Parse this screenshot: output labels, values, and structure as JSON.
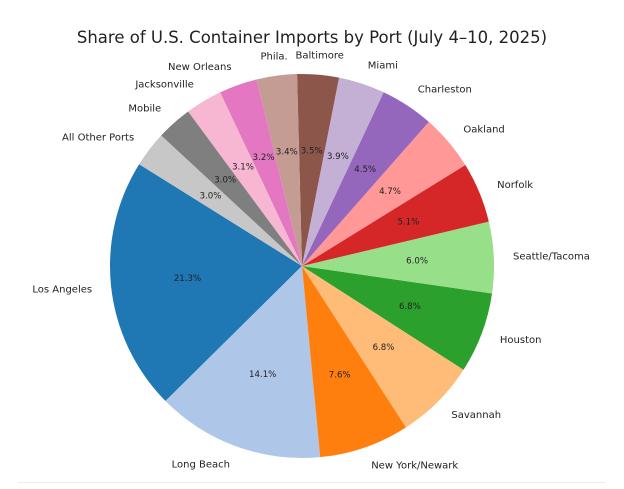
{
  "chart_data": {
    "type": "pie",
    "title": "Share of U.S. Container Imports by Port (July 4–10, 2025)",
    "labels": [
      "Los Angeles",
      "Long Beach",
      "New York/Newark",
      "Savannah",
      "Houston",
      "Seattle/Tacoma",
      "Norfolk",
      "Oakland",
      "Charleston",
      "Miami",
      "Baltimore",
      "Phila.",
      "New Orleans",
      "Jacksonville",
      "Mobile",
      "All Other Ports"
    ],
    "values": [
      21.3,
      14.1,
      7.6,
      6.8,
      6.8,
      6.0,
      5.1,
      4.7,
      4.5,
      3.9,
      3.5,
      3.4,
      3.2,
      3.1,
      3.0,
      3.0
    ],
    "pct_labels": [
      "21.3%",
      "14.1%",
      "7.6%",
      "6.8%",
      "6.8%",
      "6.0%",
      "5.1%",
      "4.7%",
      "4.5%",
      "3.9%",
      "3.5%",
      "3.4%",
      "3.2%",
      "3.1%",
      "3.0%",
      "3.0%"
    ],
    "colors": [
      "#1f77b4",
      "#aec7e8",
      "#ff7f0e",
      "#ffbb78",
      "#2ca02c",
      "#98df8a",
      "#d62728",
      "#ff9896",
      "#9467bd",
      "#c5b0d5",
      "#8c564b",
      "#c49c94",
      "#e377c2",
      "#f7b6d2",
      "#7f7f7f",
      "#c7c7c7"
    ],
    "start_angle_deg": 148,
    "direction": "counterclockwise",
    "legend": "none"
  }
}
